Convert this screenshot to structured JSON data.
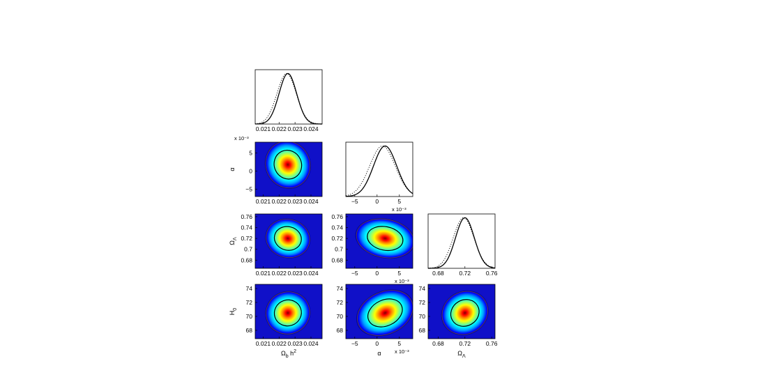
{
  "chart_data": {
    "type": "triangle-posterior",
    "parameters": [
      {
        "key": "omega_b",
        "label": "Ω_b h²",
        "label_main": "Ω",
        "label_sub": "b",
        "label_tail": " h",
        "label_sup": "2",
        "range": [
          0.0205,
          0.0247
        ],
        "ticks": [
          0.021,
          0.022,
          0.023,
          0.024
        ],
        "tick_labels": [
          "0.021",
          "0.022",
          "0.023",
          "0.024"
        ],
        "mean": 0.02255,
        "sigma": 0.00055,
        "exponent": ""
      },
      {
        "key": "alpha",
        "label": "α",
        "label_main": "α",
        "label_sub": "",
        "label_tail": "",
        "label_sup": "",
        "range": [
          -7,
          8
        ],
        "ticks": [
          -5,
          0,
          5
        ],
        "tick_labels": [
          "−5",
          "0",
          "5"
        ],
        "mean": 1.8,
        "sigma": 2.6,
        "exponent": "x 10⁻³"
      },
      {
        "key": "omega_l",
        "label": "Ω_Λ",
        "label_main": "Ω",
        "label_sub": "Λ",
        "label_tail": "",
        "label_sup": "",
        "range": [
          0.665,
          0.765
        ],
        "ticks": [
          0.68,
          0.7,
          0.72,
          0.74,
          0.76
        ],
        "tick_labels": [
          "0.68",
          "0.7",
          "0.72",
          "0.74",
          "0.76"
        ],
        "mean": 0.72,
        "sigma": 0.014,
        "exponent": ""
      },
      {
        "key": "h0",
        "label": "H₀",
        "label_main": "H",
        "label_sub": "0",
        "label_tail": "",
        "label_sup": "",
        "range": [
          66.8,
          74.6
        ],
        "ticks": [
          68,
          70,
          72,
          74
        ],
        "tick_labels": [
          "68",
          "70",
          "72",
          "74"
        ],
        "mean": 70.5,
        "sigma": 1.2,
        "exponent": ""
      }
    ],
    "diagonal": [
      {
        "param": 0,
        "xlabel_ticks": [
          "0.021",
          "0.022",
          "0.023",
          "0.024"
        ],
        "solid_peak_shift": 0.0,
        "dotted_peak_shift": -8e-05
      },
      {
        "param": 1,
        "xlabel_ticks": [
          "−5",
          "0",
          "5"
        ],
        "solid_peak_shift": 0.0,
        "dotted_peak_shift": -0.6
      },
      {
        "param": 2,
        "xlabel_ticks": [
          "0.68",
          "0.72",
          "0.76"
        ],
        "solid_peak_shift": 0.0,
        "dotted_peak_shift": -0.002
      }
    ],
    "joint_panels": [
      {
        "x": 0,
        "y": 1,
        "correlation": 0.45
      },
      {
        "x": 0,
        "y": 2,
        "correlation": -0.25
      },
      {
        "x": 1,
        "y": 2,
        "correlation": -0.2
      },
      {
        "x": 0,
        "y": 3,
        "correlation": 0.35
      },
      {
        "x": 1,
        "y": 3,
        "correlation": 0.45
      },
      {
        "x": 2,
        "y": 3,
        "correlation": 0.55
      }
    ],
    "contours": [
      "68%",
      "95%"
    ],
    "colormap": [
      "#00008f",
      "#0000ff",
      "#00a0ff",
      "#00ffff",
      "#80ff80",
      "#ffff00",
      "#ff8000",
      "#ff0000",
      "#800000"
    ],
    "background": "#1010c8"
  }
}
